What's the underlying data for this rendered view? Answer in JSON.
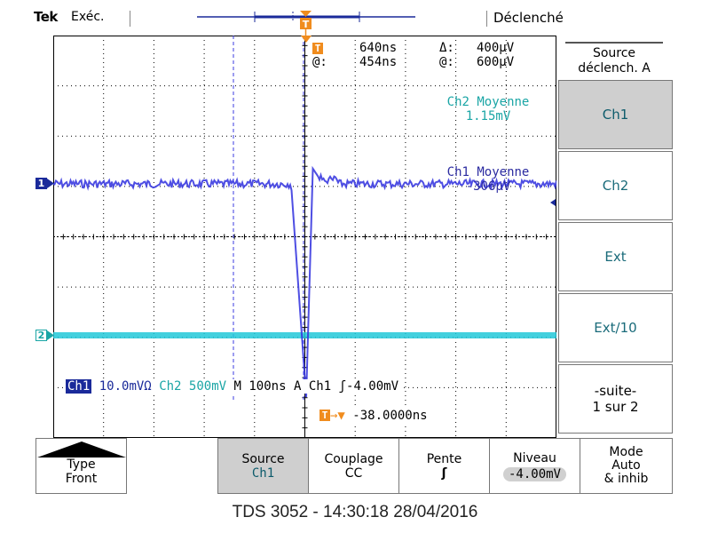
{
  "status_bar": {
    "brand": "Tek",
    "run_status": "Exéc.",
    "trigger_state": "Déclenché"
  },
  "cursor_readout": {
    "time_delta_label": "Δ:",
    "time_delta": "640ns",
    "time_at_label": "@:",
    "time_at": "454ns",
    "volt_delta_label": "Δ:",
    "volt_delta": "400µV",
    "volt_at_label": "@:",
    "volt_at": "600µV"
  },
  "measurements": {
    "ch2_label": "Ch2 Moyenne",
    "ch2_value": "1.15mV",
    "ch1_label": "Ch1 Moyenne",
    "ch1_value": "-306µV"
  },
  "channel_markers": {
    "ch1": "1",
    "ch2": "2"
  },
  "scale_info": {
    "ch1_tag": "Ch1",
    "ch1_scale": "10.0mVΩ",
    "ch2_tag": "Ch2",
    "ch2_scale": "500mV",
    "timebase": "M 100ns",
    "trigger_mode": "A",
    "trigger_source": "Ch1",
    "trigger_level": "-4.00mV",
    "horizontal_position": "-38.0000ns"
  },
  "side_menu": {
    "title_line1": "Source",
    "title_line2": "déclench. A",
    "items": [
      {
        "label": "Ch1",
        "selected": true
      },
      {
        "label": "Ch2",
        "selected": false
      },
      {
        "label": "Ext",
        "selected": false
      },
      {
        "label": "Ext/10",
        "selected": false
      }
    ],
    "more_line1": "-suite-",
    "more_line2": "1 sur 2"
  },
  "bottom_menu": {
    "type_label": "Type",
    "type_value": "Front",
    "source_label": "Source",
    "source_value": "Ch1",
    "coupling_label": "Couplage",
    "coupling_value": "CC",
    "slope_label": "Pente",
    "slope_value": "ʃ",
    "level_label": "Niveau",
    "level_value": "-4.00mV",
    "mode_line1": "Mode",
    "mode_line2": "Auto",
    "mode_line3": "& inhib"
  },
  "footer": "TDS 3052 - 14:30:18   28/04/2016",
  "colors": {
    "ch1": "#3b3be0",
    "ch2": "#22c8d8",
    "trigger": "#f08c1e",
    "grid": "#000000"
  }
}
